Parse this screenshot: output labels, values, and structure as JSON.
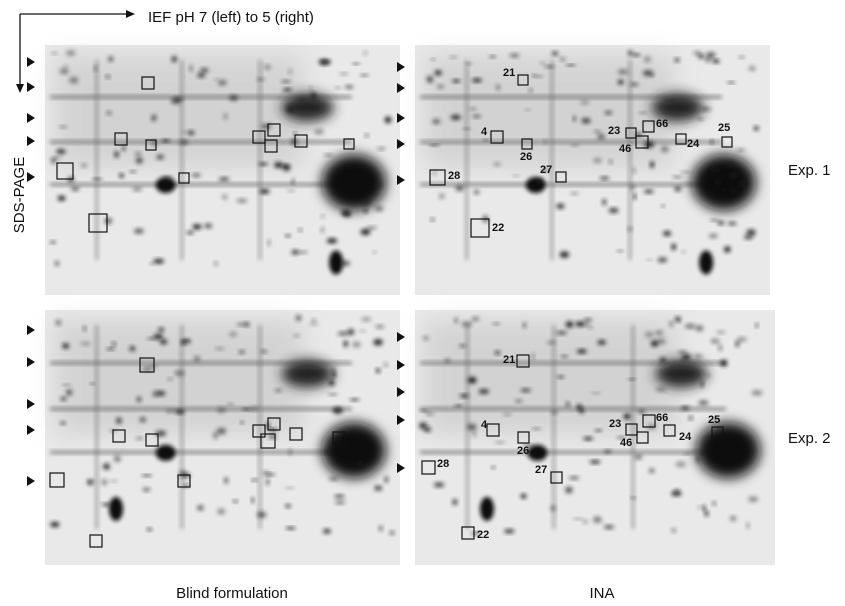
{
  "axis_labels": {
    "horizontal": "IEF pH 7 (left) to 5 (right)",
    "vertical": "SDS-PAGE"
  },
  "rows": [
    "Exp. 1",
    "Exp. 2"
  ],
  "columns": [
    "Blind formulation",
    "INA"
  ],
  "ina_spots": {
    "exp_1": [
      "21",
      "4",
      "26",
      "27",
      "28",
      "22",
      "23",
      "66",
      "46",
      "24",
      "25"
    ],
    "exp_2": [
      "21",
      "4",
      "26",
      "27",
      "28",
      "22",
      "23",
      "66",
      "46",
      "24",
      "25"
    ]
  }
}
